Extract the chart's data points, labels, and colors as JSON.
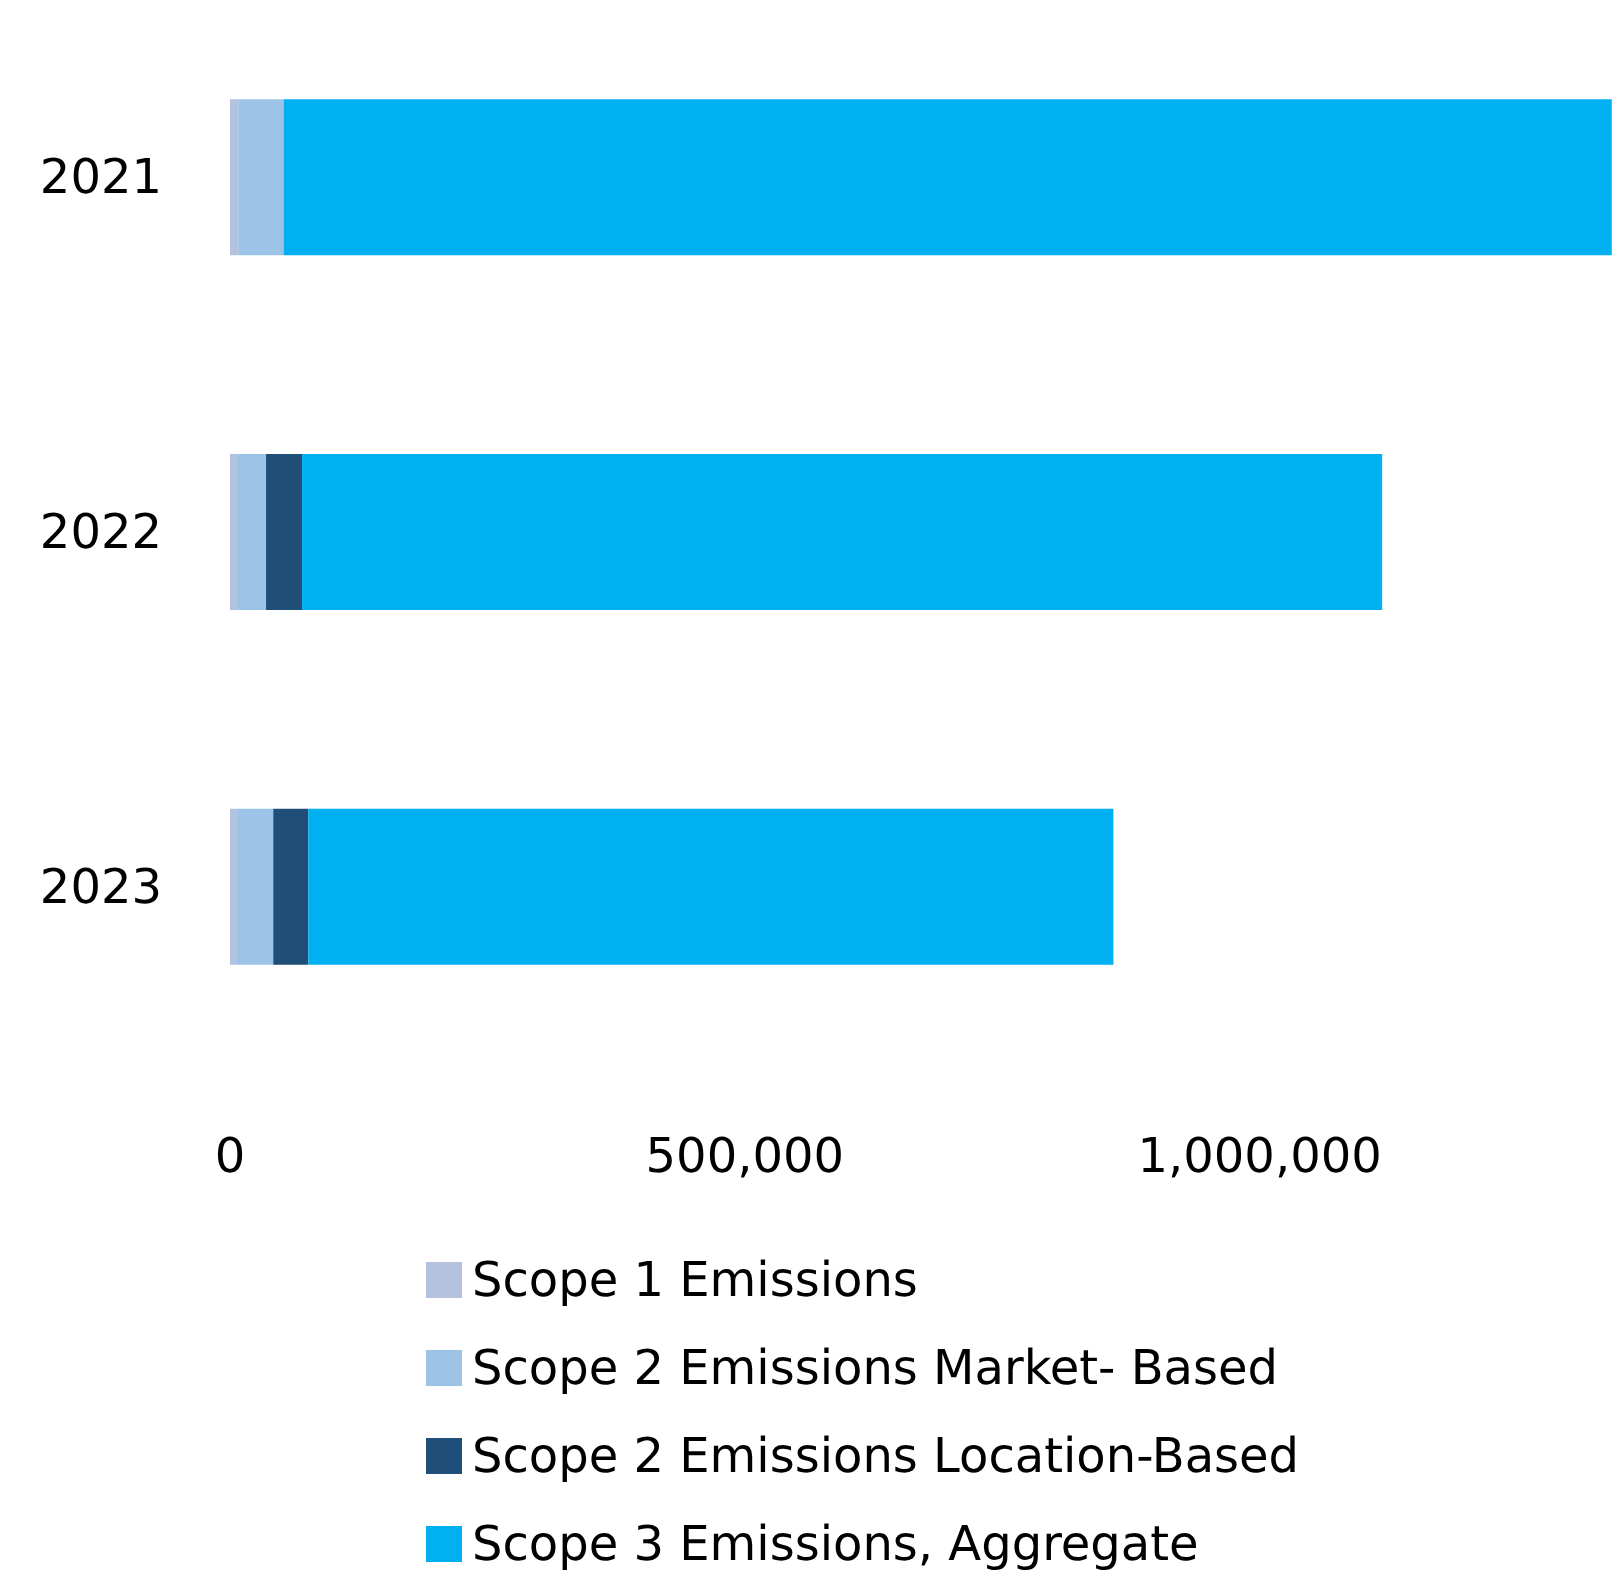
{
  "chart_data": {
    "type": "bar",
    "orientation": "horizontal",
    "stacked": true,
    "categories": [
      "2021",
      "2022",
      "2023"
    ],
    "series": [
      {
        "name": "Scope 1 Emissions",
        "color": "#b4c2e0",
        "values": [
          8000,
          6000,
          6000
        ]
      },
      {
        "name": "Scope 2 Emissions Market- Based",
        "color": "#9dc3e6",
        "values": [
          44000,
          29000,
          36000
        ]
      },
      {
        "name": "Scope 2 Emissions Location-Based",
        "color": "#1f4e79",
        "values": [
          null,
          35000,
          34000
        ]
      },
      {
        "name": "Scope 3 Emissions, Aggregate",
        "color": "#00b0f0",
        "values": [
          1290000,
          1049000,
          782000
        ]
      }
    ],
    "xlim": [
      0,
      1350000
    ],
    "xticks": [
      {
        "value": 0,
        "label": "0"
      },
      {
        "value": 500000,
        "label": "500,000"
      },
      {
        "value": 1000000,
        "label": "1,000,000"
      }
    ],
    "grid": false,
    "legend": "bottom"
  }
}
